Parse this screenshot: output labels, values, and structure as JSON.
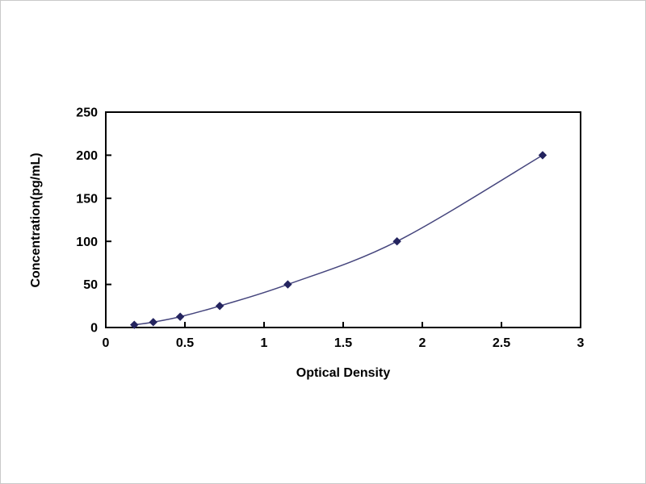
{
  "chart_data": {
    "type": "line",
    "title": "",
    "xlabel": "Optical Density",
    "ylabel": "Concentration(pg/mL)",
    "xlim": [
      0,
      3
    ],
    "ylim": [
      0,
      250
    ],
    "xticks": [
      0,
      0.5,
      1,
      1.5,
      2,
      2.5,
      3
    ],
    "yticks": [
      0,
      50,
      100,
      150,
      200,
      250
    ],
    "grid": false,
    "legend_position": "none",
    "points": [
      {
        "x": 0.18,
        "y": 3.12
      },
      {
        "x": 0.3,
        "y": 6.25
      },
      {
        "x": 0.47,
        "y": 12.5
      },
      {
        "x": 0.72,
        "y": 25
      },
      {
        "x": 1.15,
        "y": 50
      },
      {
        "x": 1.84,
        "y": 100
      },
      {
        "x": 2.76,
        "y": 200
      }
    ],
    "line_color": "#45457d",
    "marker_color": "#24245f",
    "axis_color": "#000000"
  }
}
